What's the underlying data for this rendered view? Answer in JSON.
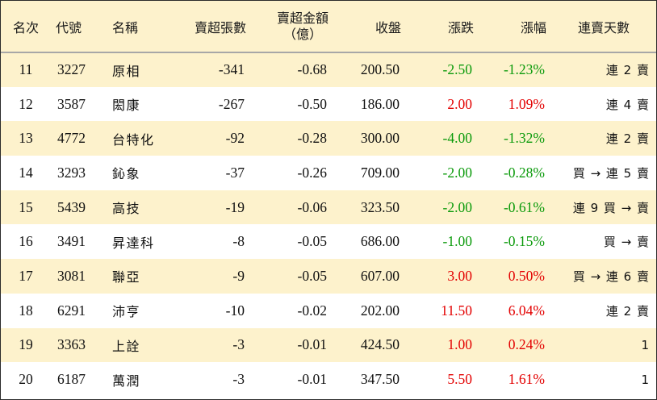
{
  "headers": {
    "rank": "名次",
    "code": "代號",
    "name": "名稱",
    "net_sell_volume": "賣超張數",
    "net_sell_amount_line1": "賣超金額",
    "net_sell_amount_line2": "（億）",
    "close": "收盤",
    "change": "漲跌",
    "change_pct": "漲幅",
    "streak": "連賣天數"
  },
  "colors": {
    "up": "#e30000",
    "down": "#0a9a0a",
    "stripe": "#fdf2cc"
  },
  "rows": [
    {
      "rank": "11",
      "code": "3227",
      "name": "原相",
      "volume": "-341",
      "amount": "-0.68",
      "close": "200.50",
      "change": "-2.50",
      "pct": "-1.23%",
      "streak": "連 2 賣",
      "dir": "down"
    },
    {
      "rank": "12",
      "code": "3587",
      "name": "閎康",
      "volume": "-267",
      "amount": "-0.50",
      "close": "186.00",
      "change": "2.00",
      "pct": "1.09%",
      "streak": "連 4 賣",
      "dir": "up"
    },
    {
      "rank": "13",
      "code": "4772",
      "name": "台特化",
      "volume": "-92",
      "amount": "-0.28",
      "close": "300.00",
      "change": "-4.00",
      "pct": "-1.32%",
      "streak": "連 2 賣",
      "dir": "down"
    },
    {
      "rank": "14",
      "code": "3293",
      "name": "鈊象",
      "volume": "-37",
      "amount": "-0.26",
      "close": "709.00",
      "change": "-2.00",
      "pct": "-0.28%",
      "streak": "買 → 連 5 賣",
      "dir": "down"
    },
    {
      "rank": "15",
      "code": "5439",
      "name": "高技",
      "volume": "-19",
      "amount": "-0.06",
      "close": "323.50",
      "change": "-2.00",
      "pct": "-0.61%",
      "streak": "連 9 買 → 賣",
      "dir": "down"
    },
    {
      "rank": "16",
      "code": "3491",
      "name": "昇達科",
      "volume": "-8",
      "amount": "-0.05",
      "close": "686.00",
      "change": "-1.00",
      "pct": "-0.15%",
      "streak": "買 → 賣",
      "dir": "down"
    },
    {
      "rank": "17",
      "code": "3081",
      "name": "聯亞",
      "volume": "-9",
      "amount": "-0.05",
      "close": "607.00",
      "change": "3.00",
      "pct": "0.50%",
      "streak": "買 → 連 6 賣",
      "dir": "up"
    },
    {
      "rank": "18",
      "code": "6291",
      "name": "沛亨",
      "volume": "-10",
      "amount": "-0.02",
      "close": "202.00",
      "change": "11.50",
      "pct": "6.04%",
      "streak": "連 2 賣",
      "dir": "up"
    },
    {
      "rank": "19",
      "code": "3363",
      "name": "上詮",
      "volume": "-3",
      "amount": "-0.01",
      "close": "424.50",
      "change": "1.00",
      "pct": "0.24%",
      "streak": "1",
      "dir": "up"
    },
    {
      "rank": "20",
      "code": "6187",
      "name": "萬潤",
      "volume": "-3",
      "amount": "-0.01",
      "close": "347.50",
      "change": "5.50",
      "pct": "1.61%",
      "streak": "1",
      "dir": "up"
    }
  ]
}
